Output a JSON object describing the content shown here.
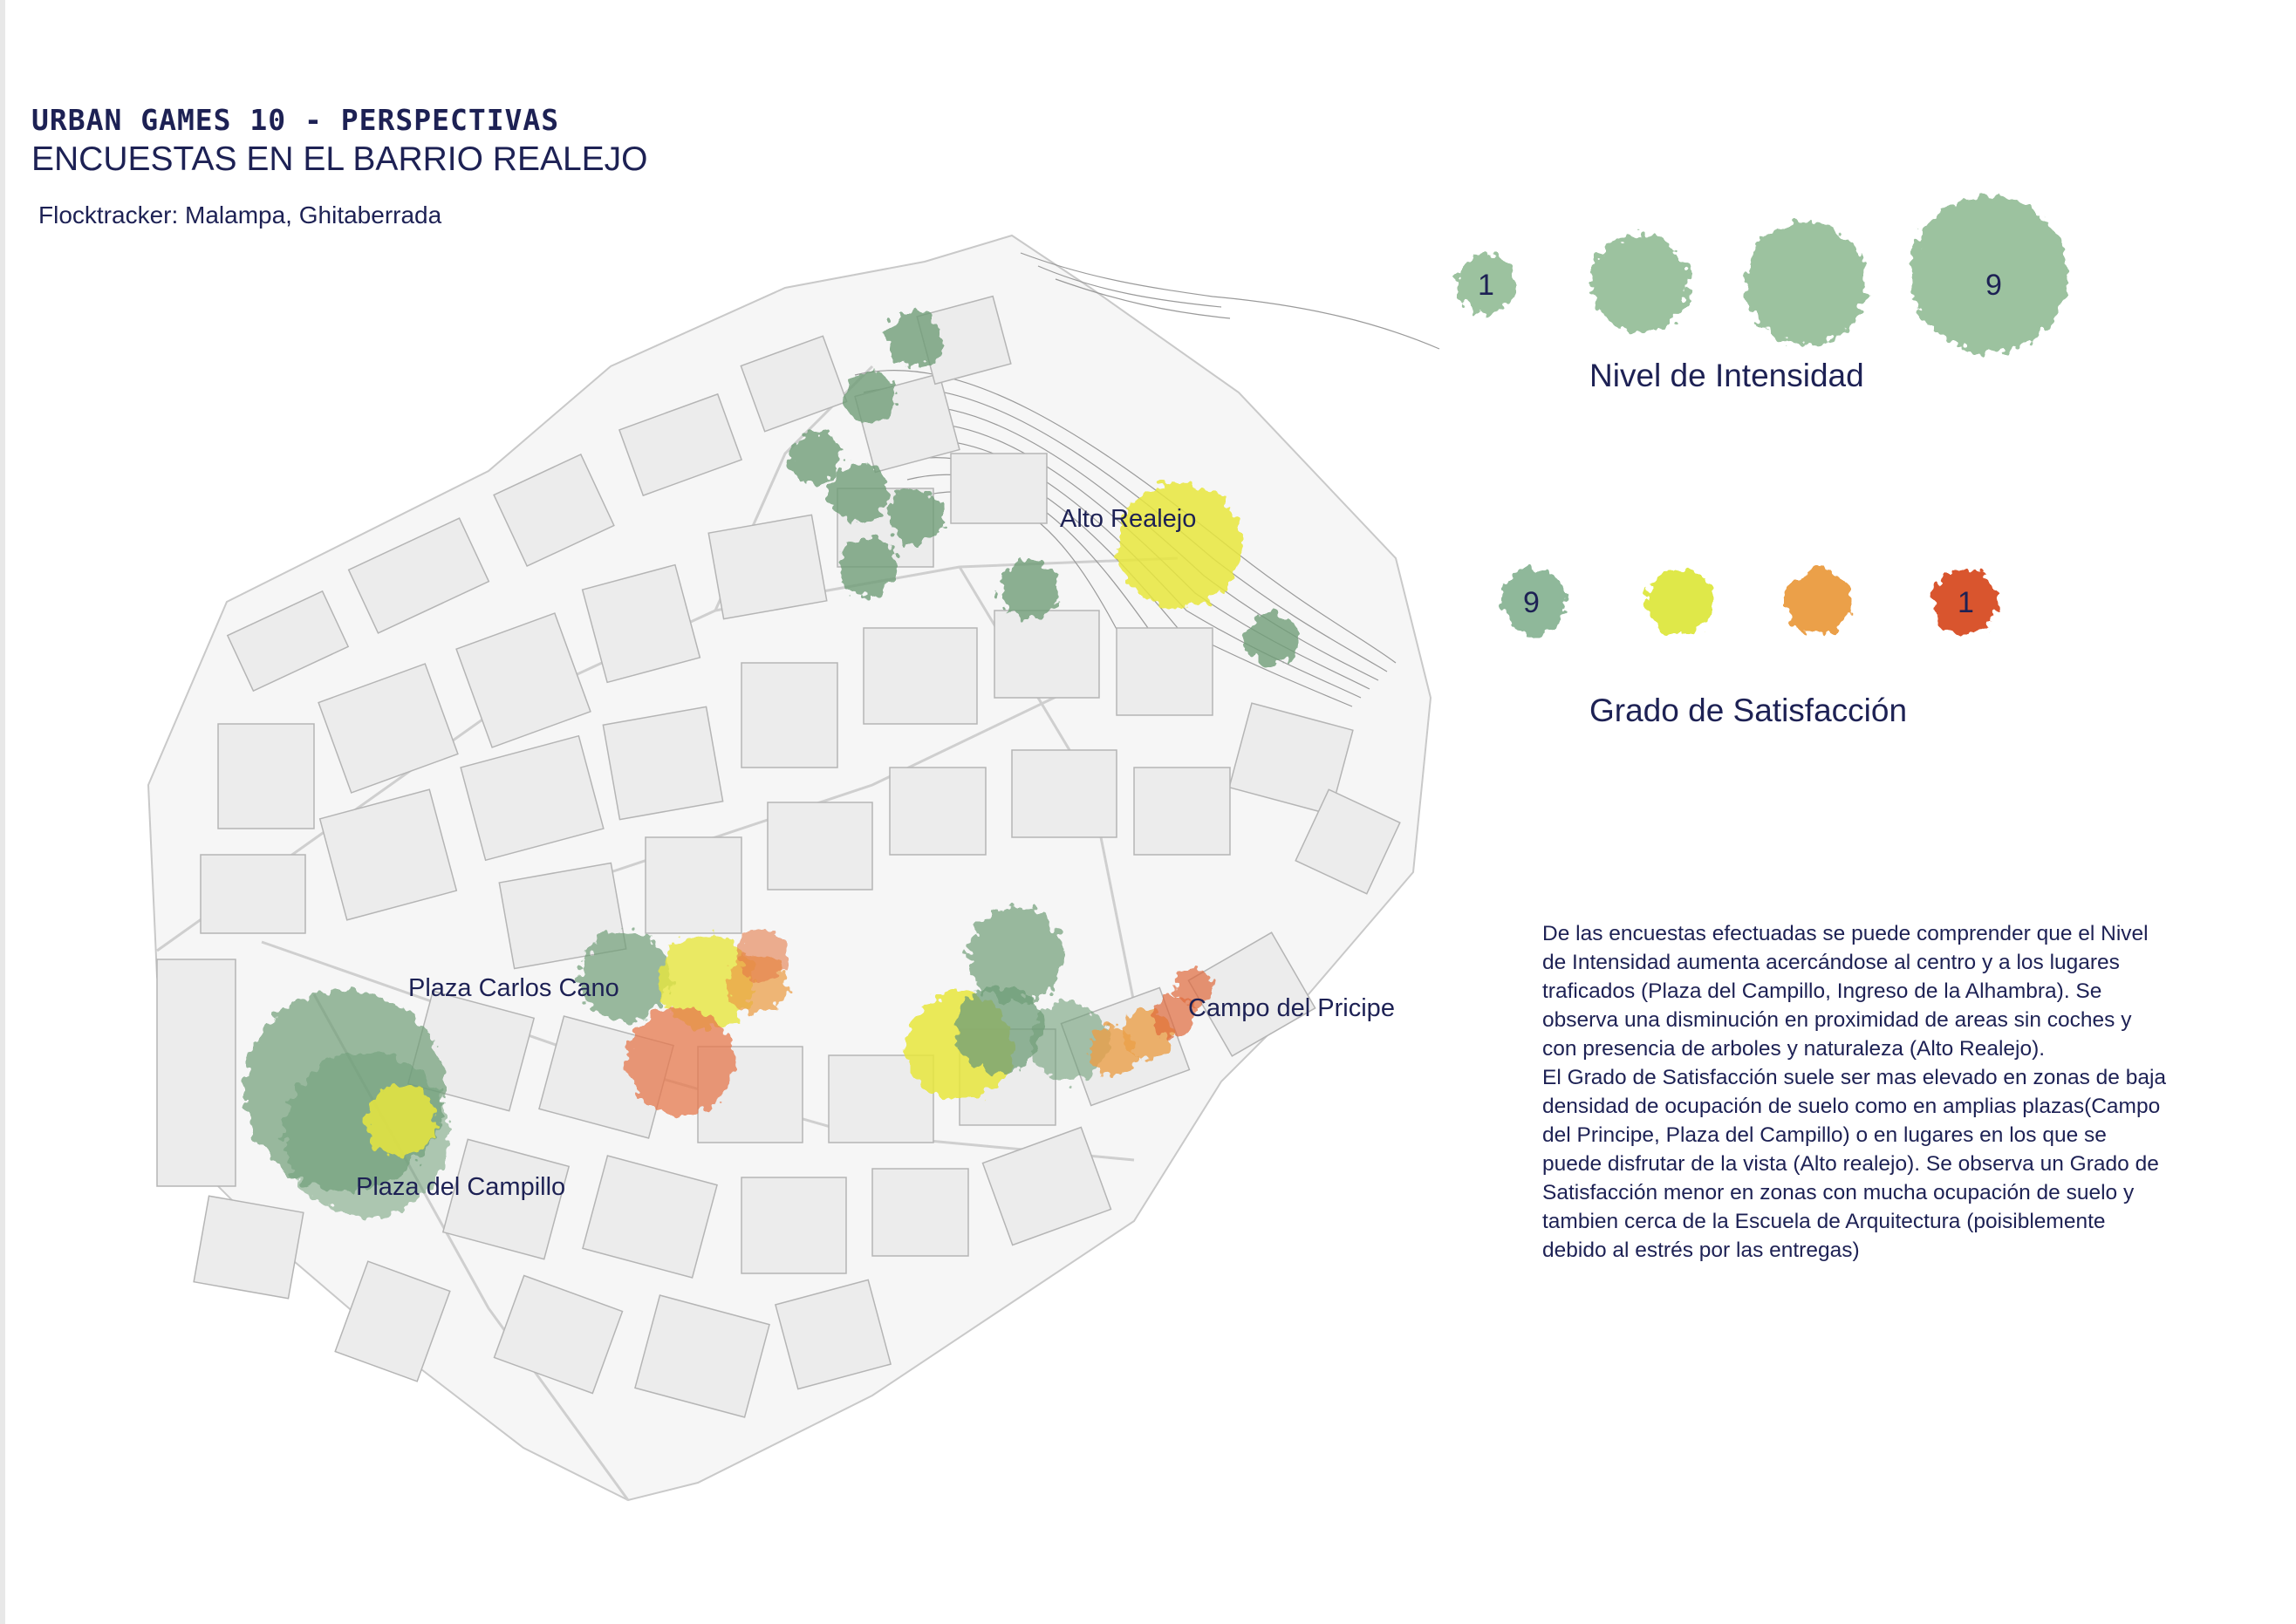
{
  "header": {
    "series_title": "URBAN GAMES 10 - PERSPECTIVAS",
    "main_title": "ENCUESTAS EN EL BARRIO REALEJO",
    "credits": "Flocktracker: Malampa, Ghitaberrada"
  },
  "map": {
    "places": [
      {
        "id": "alto-realejo",
        "label": "Alto Realejo"
      },
      {
        "id": "plaza-carlos-cano",
        "label": "Plaza Carlos Cano"
      },
      {
        "id": "campo-del-pricipe",
        "label": "Campo del Pricipe"
      },
      {
        "id": "plaza-del-campillo",
        "label": "Plaza del Campillo"
      }
    ],
    "survey_markers_note_colors": {
      "satisfaction_9": "#8fb89a",
      "satisfaction_7": "#dfe04a",
      "satisfaction_4": "#eba04a",
      "satisfaction_1": "#d9552e",
      "dark_green": "#6f9e78",
      "building_fill": "#ececec",
      "building_stroke": "#b5b5b5"
    }
  },
  "legend": {
    "intensity": {
      "title": "Nivel de Intensidad",
      "min_label": "1",
      "max_label": "9",
      "color": "#9cc29f"
    },
    "satisfaction": {
      "title": "Grado de Satisfacción",
      "high_label": "9",
      "low_label": "1",
      "colors": [
        "#8fb89a",
        "#dfe84a",
        "#eba04a",
        "#d9552e"
      ]
    }
  },
  "description": {
    "paragraph_1": "De las encuestas efectuadas se puede comprender que el Nivel de Intensidad aumenta acercándose al centro y a los lugares traficados (Plaza del Campillo, Ingreso de la Alhambra). Se observa una disminución en proximidad de areas sin coches y con presencia de arboles y naturaleza (Alto Realejo).",
    "paragraph_2": "El Grado de Satisfacción suele ser mas elevado en zonas de baja densidad de ocupación de suelo como en amplias plazas(Campo del Principe, Plaza del Campillo) o en lugares en los que se puede disfrutar de la vista (Alto realejo). Se observa un Grado de Satisfacción menor en zonas con mucha ocupación de suelo y tambien cerca de la Escuela de Arquitectura (poisiblemente debido al estrés por las entregas)"
  }
}
